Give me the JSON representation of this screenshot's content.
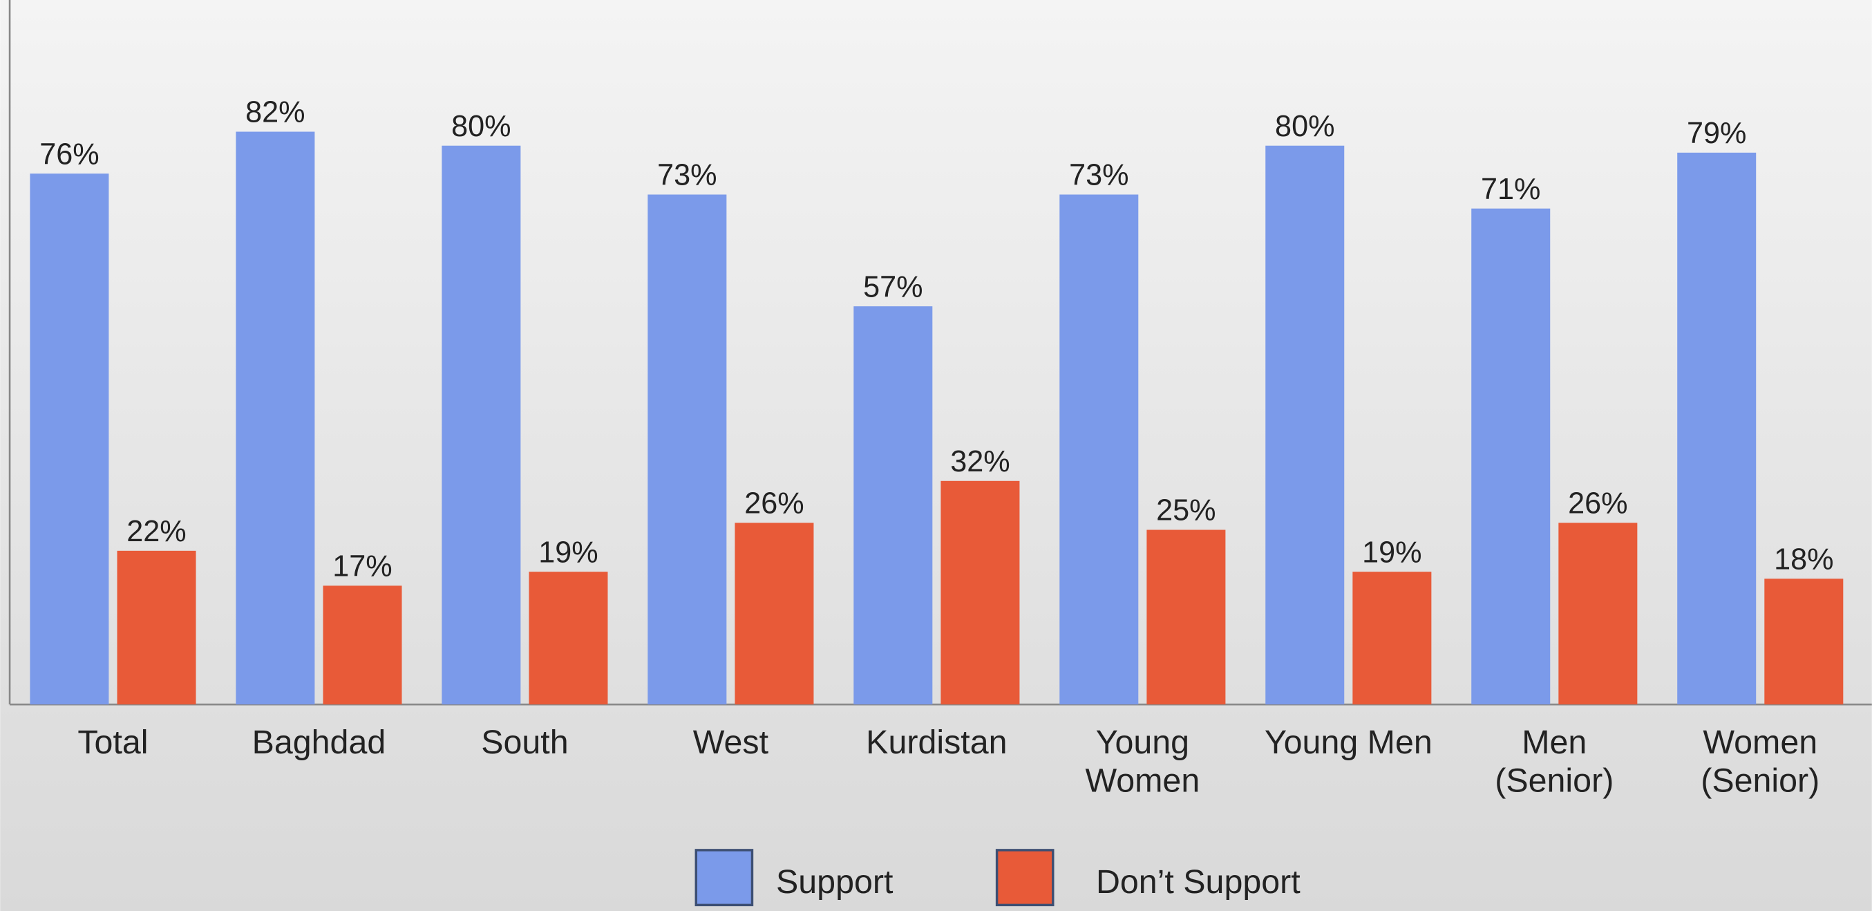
{
  "chart_data": {
    "type": "bar",
    "categories": [
      "Total",
      "Baghdad",
      "South",
      "West",
      "Kurdistan",
      "Young\nWomen",
      "Young Men",
      "Men\n(Senior)",
      "Women\n(Senior)"
    ],
    "series": [
      {
        "name": "Support",
        "color": "#7b9aea",
        "values": [
          76,
          82,
          80,
          73,
          57,
          73,
          80,
          71,
          79
        ],
        "value_labels": [
          "76%",
          "82%",
          "80%",
          "73%",
          "57%",
          "73%",
          "80%",
          "71%",
          "79%"
        ]
      },
      {
        "name": "Don’t Support",
        "color": "#e85a38",
        "values": [
          22,
          17,
          19,
          26,
          32,
          25,
          19,
          26,
          18
        ],
        "value_labels": [
          "22%",
          "17%",
          "19%",
          "26%",
          "32%",
          "25%",
          "19%",
          "26%",
          "18%"
        ]
      }
    ],
    "ylim": [
      0,
      100
    ]
  }
}
